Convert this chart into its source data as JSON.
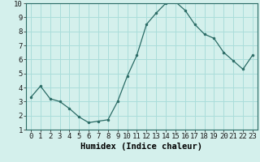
{
  "x": [
    0,
    1,
    2,
    3,
    4,
    5,
    6,
    7,
    8,
    9,
    10,
    11,
    12,
    13,
    14,
    15,
    16,
    17,
    18,
    19,
    20,
    21,
    22,
    23
  ],
  "y": [
    3.3,
    4.1,
    3.2,
    3.0,
    2.5,
    1.9,
    1.5,
    1.6,
    1.7,
    3.0,
    4.8,
    6.3,
    8.5,
    9.3,
    10.0,
    10.1,
    9.5,
    8.5,
    7.8,
    7.5,
    6.5,
    5.9,
    5.3,
    6.3
  ],
  "bg_color": "#d4f0ec",
  "line_color": "#2a6b65",
  "marker_color": "#2a6b65",
  "grid_color": "#aaddda",
  "xlabel": "Humidex (Indice chaleur)",
  "ylim": [
    1,
    10
  ],
  "xlim": [
    -0.5,
    23.5
  ],
  "yticks": [
    1,
    2,
    3,
    4,
    5,
    6,
    7,
    8,
    9,
    10
  ],
  "xticks": [
    0,
    1,
    2,
    3,
    4,
    5,
    6,
    7,
    8,
    9,
    10,
    11,
    12,
    13,
    14,
    15,
    16,
    17,
    18,
    19,
    20,
    21,
    22,
    23
  ],
  "xlabel_fontsize": 7.5,
  "tick_fontsize": 6.5
}
